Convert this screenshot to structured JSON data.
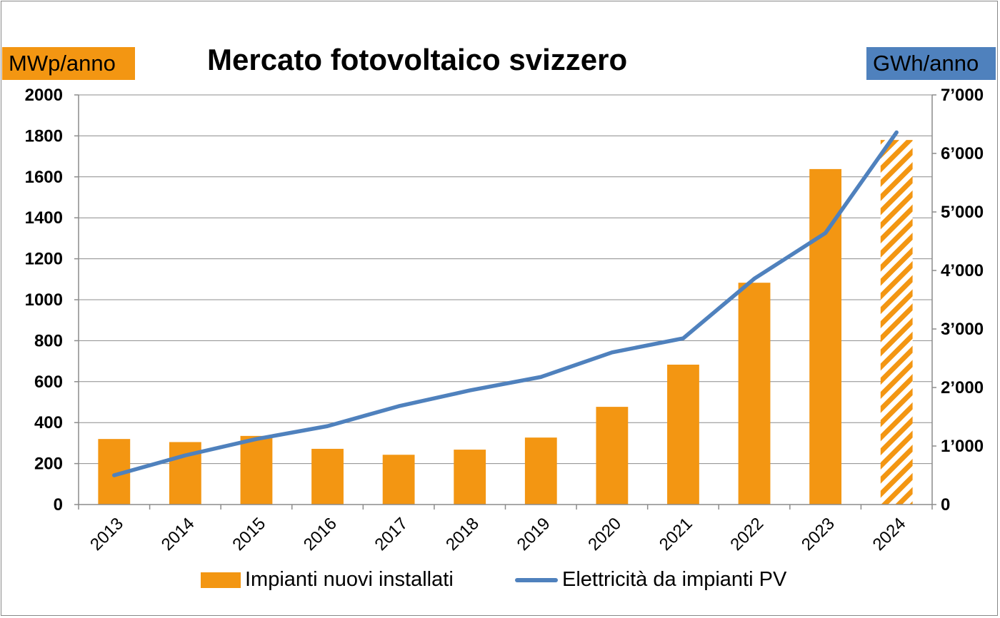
{
  "chart_data": {
    "type": "bar+line",
    "title": "Mercato fotovoltaico svizzero",
    "left_axis_label": "MWp/anno",
    "right_axis_label": "GWh/anno",
    "categories": [
      "2013",
      "2014",
      "2015",
      "2016",
      "2017",
      "2018",
      "2019",
      "2020",
      "2021",
      "2022",
      "2023",
      "2024"
    ],
    "y_left_ticks": [
      "0",
      "200",
      "400",
      "600",
      "800",
      "1000",
      "1200",
      "1400",
      "1600",
      "1800",
      "2000"
    ],
    "y_right_ticks": [
      "0",
      "1’000",
      "2’000",
      "3’000",
      "4’000",
      "5’000",
      "6’000",
      "7’000"
    ],
    "ylim_left": [
      0,
      2000
    ],
    "ylim_right": [
      0,
      7000
    ],
    "grid": true,
    "legend_position": "bottom",
    "series": [
      {
        "name": "Impianti nuovi installati",
        "type": "bar",
        "axis": "left",
        "color": "#f39612",
        "values": [
          320,
          305,
          335,
          272,
          243,
          268,
          327,
          477,
          683,
          1083,
          1638,
          1780
        ],
        "hatched_last": true
      },
      {
        "name": "Elettricità da impianti PV",
        "type": "line",
        "axis": "right",
        "color": "#4f81bd",
        "values": [
          500,
          840,
          1120,
          1340,
          1680,
          1950,
          2180,
          2600,
          2840,
          3860,
          4640,
          6360
        ]
      }
    ]
  },
  "colors": {
    "left_unit_bg": "#f39612",
    "right_unit_bg": "#4f81bd"
  }
}
